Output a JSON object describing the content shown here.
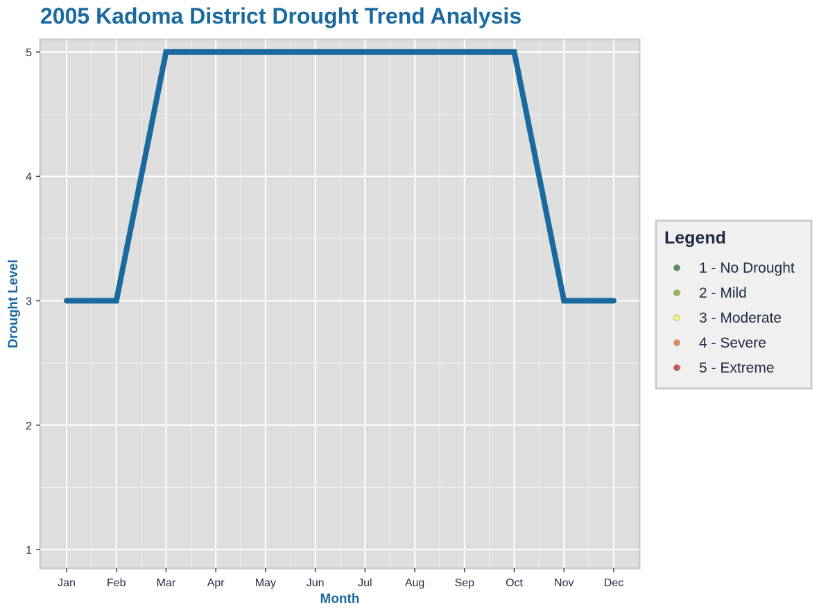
{
  "chart_data": {
    "type": "line",
    "title": "2005 Kadoma District Drought Trend Analysis",
    "xlabel": "Month",
    "ylabel": "Drought Level",
    "categories": [
      "Jan",
      "Feb",
      "Mar",
      "Apr",
      "May",
      "Jun",
      "Jul",
      "Aug",
      "Sep",
      "Oct",
      "Nov",
      "Dec"
    ],
    "series": [
      {
        "values": [
          3,
          3,
          5,
          5,
          5,
          5,
          5,
          5,
          5,
          5,
          3,
          3
        ],
        "color": "#1a6aa0"
      }
    ],
    "ylim": [
      0.85,
      5.1
    ],
    "yticks": [
      1,
      2,
      3,
      4,
      5
    ],
    "grid": true,
    "legend": {
      "title": "Legend",
      "position": "right",
      "items": [
        {
          "label": "1 - No Drought",
          "color": "#5a8f5a"
        },
        {
          "label": "2 - Mild",
          "color": "#99b85a"
        },
        {
          "label": "3 - Moderate",
          "color": "#f0f07a"
        },
        {
          "label": "4 - Severe",
          "color": "#e08a5a"
        },
        {
          "label": "5 - Extreme",
          "color": "#cc5555"
        }
      ]
    },
    "colors": {
      "title": "#1a6aa0",
      "axis_title": "#1a6aa0",
      "tick_label": "#1f2a44",
      "legend_text": "#1f2a44",
      "panel_bg": "#dedede",
      "panel_border": "#cccccc",
      "grid": "#ffffff",
      "legend_bg": "#f0f0f0"
    }
  }
}
